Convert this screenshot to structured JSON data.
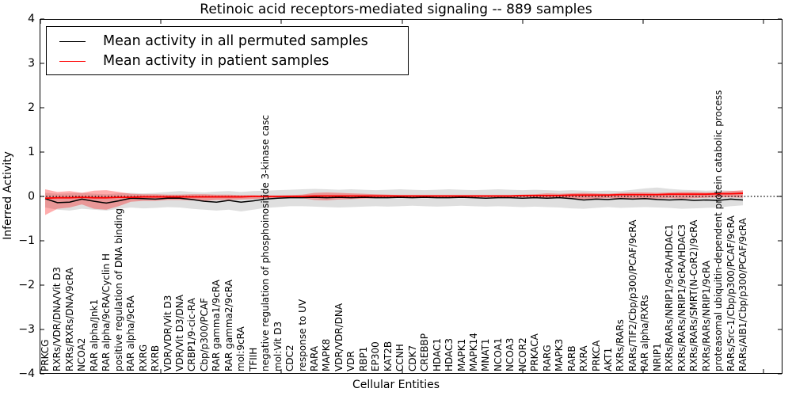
{
  "figure": {
    "title": "Retinoic acid receptors-mediated signaling -- 889 samples",
    "xlabel": "Cellular Entities",
    "ylabel": "Inferred Activity"
  },
  "legend": {
    "entries": [
      {
        "label": "Mean activity in all permuted samples",
        "color": "#000000"
      },
      {
        "label": "Mean activity in patient samples",
        "color": "#ff0000"
      }
    ]
  },
  "chart_data": {
    "type": "line",
    "title": "Retinoic acid receptors-mediated signaling -- 889 samples",
    "xlabel": "Cellular Entities",
    "ylabel": "Inferred Activity",
    "ylim": [
      -4,
      4
    ],
    "ytick_labels": [
      "4",
      "3",
      "2",
      "1",
      "0",
      "−1",
      "−2",
      "−3",
      "−4"
    ],
    "ytick_values": [
      4,
      3,
      2,
      1,
      0,
      -1,
      -2,
      -3,
      -4
    ],
    "grid": false,
    "legend_position": "upper left",
    "zero_reference_line": 0,
    "categories": [
      "PRKCG",
      "RXRs/VDR/DNA/Vit D3",
      "RXRs/RXRs/DNA/9cRA",
      "NCOA2",
      "RAR alpha/Jnk1",
      "RAR alpha/9cRA/Cyclin H",
      "positive regulation of DNA binding",
      "RAR alpha/9cRA",
      "RXRG",
      "RXRB",
      "VDR/VDR/Vit D3",
      "VDR/Vit D3/DNA",
      "CRBP1/9-cic-RA",
      "Cbp/p300/PCAF",
      "RAR gamma1/9cRA",
      "RAR gamma2/9cRA",
      "mol:9cRA",
      "TFIIH",
      "negative regulation of phosphoinositide 3-kinase casc",
      "mol:Vit D3",
      "CDC2",
      "response to UV",
      "RARA",
      "MAPK8",
      "VDR/VDR/DNA",
      "VDR",
      "RBP1",
      "EP300",
      "KAT2B",
      "CCNH",
      "CDK7",
      "CREBBP",
      "HDAC1",
      "HDAC3",
      "MAPK1",
      "MAPK14",
      "MNAT1",
      "NCOA1",
      "NCOA3",
      "NCOR2",
      "PRKACA",
      "RARG",
      "MAPK3",
      "RARB",
      "RXRA",
      "PRKCA",
      "AKT1",
      "RXRs/RARs",
      "RARs/TIF2/Cbp/p300/PCAF/9cRA",
      "RAR alpha/RXRs",
      "NRIP1",
      "RXRs/RARs/NRIP1/9cRA/HDAC1",
      "RXRs/RARs/NRIP1/9cRA/HDAC3",
      "RXRs/RARs/SMRT(N-CoR2)/9cRA",
      "RXRs/RARs/NRIP1/9cRA",
      "proteasomal ubiquitin-dependent protein catabolic process",
      "RARs/Src-1/Cbp/p300/PCAF/9cRA",
      "RARs/AIB1/Cbp/p300/PCAF/9cRA"
    ],
    "series": [
      {
        "name": "Mean activity in all permuted samples",
        "kind": "line",
        "color": "#000000",
        "values": [
          -0.05,
          -0.14,
          -0.13,
          -0.06,
          -0.11,
          -0.15,
          -0.1,
          -0.04,
          -0.05,
          -0.06,
          -0.04,
          -0.04,
          -0.07,
          -0.11,
          -0.13,
          -0.09,
          -0.13,
          -0.1,
          -0.06,
          -0.04,
          -0.03,
          -0.03,
          -0.02,
          -0.03,
          -0.02,
          -0.03,
          -0.02,
          -0.03,
          -0.03,
          -0.02,
          -0.03,
          -0.02,
          -0.03,
          -0.03,
          -0.02,
          -0.03,
          -0.04,
          -0.03,
          -0.03,
          -0.04,
          -0.03,
          -0.04,
          -0.03,
          -0.05,
          -0.08,
          -0.06,
          -0.07,
          -0.05,
          -0.06,
          -0.05,
          -0.07,
          -0.08,
          -0.07,
          -0.09,
          -0.08,
          -0.09,
          -0.06,
          -0.08
        ]
      },
      {
        "name": "Mean activity in patient samples",
        "kind": "line",
        "color": "#ff0000",
        "values": [
          -0.04,
          -0.03,
          -0.03,
          -0.02,
          -0.03,
          -0.03,
          -0.02,
          -0.02,
          -0.01,
          -0.01,
          -0.01,
          -0.01,
          -0.01,
          -0.01,
          -0.01,
          -0.01,
          -0.01,
          0.0,
          0.0,
          0.0,
          0.0,
          0.0,
          0.01,
          0.01,
          0.01,
          0.01,
          0.01,
          0.01,
          0.01,
          0.01,
          0.01,
          0.01,
          0.01,
          0.01,
          0.01,
          0.01,
          0.01,
          0.01,
          0.01,
          0.02,
          0.02,
          0.02,
          0.02,
          0.03,
          0.03,
          0.03,
          0.03,
          0.04,
          0.04,
          0.04,
          0.04,
          0.05,
          0.05,
          0.05,
          0.05,
          0.06,
          0.06,
          0.07
        ]
      },
      {
        "name": "permuted samples std band",
        "kind": "band",
        "color": "rgba(128,128,128,0.25)",
        "upper": [
          0.08,
          0.06,
          0.07,
          0.08,
          0.06,
          0.05,
          0.07,
          0.08,
          0.07,
          0.08,
          0.1,
          0.12,
          0.1,
          0.09,
          0.11,
          0.12,
          0.1,
          0.12,
          0.13,
          0.14,
          0.15,
          0.16,
          0.17,
          0.16,
          0.15,
          0.16,
          0.15,
          0.14,
          0.15,
          0.16,
          0.15,
          0.14,
          0.15,
          0.16,
          0.15,
          0.14,
          0.15,
          0.16,
          0.15,
          0.14,
          0.15,
          0.14,
          0.13,
          0.14,
          0.13,
          0.12,
          0.13,
          0.12,
          0.15,
          0.18,
          0.2,
          0.17,
          0.15,
          0.14,
          0.13,
          0.14,
          0.13,
          0.12
        ],
        "lower": [
          -0.25,
          -0.3,
          -0.32,
          -0.28,
          -0.3,
          -0.32,
          -0.28,
          -0.25,
          -0.27,
          -0.26,
          -0.24,
          -0.25,
          -0.28,
          -0.3,
          -0.32,
          -0.3,
          -0.34,
          -0.3,
          -0.26,
          -0.24,
          -0.22,
          -0.22,
          -0.23,
          -0.24,
          -0.25,
          -0.24,
          -0.23,
          -0.22,
          -0.23,
          -0.22,
          -0.21,
          -0.22,
          -0.23,
          -0.22,
          -0.21,
          -0.22,
          -0.23,
          -0.22,
          -0.23,
          -0.24,
          -0.23,
          -0.24,
          -0.25,
          -0.27,
          -0.28,
          -0.26,
          -0.24,
          -0.26,
          -0.25,
          -0.24,
          -0.25,
          -0.26,
          -0.28,
          -0.27,
          -0.26,
          -0.25,
          -0.22,
          -0.2
        ]
      },
      {
        "name": "patient samples std band",
        "kind": "band",
        "color": "rgba(255,0,0,0.32)",
        "upper": [
          0.16,
          0.1,
          0.12,
          0.08,
          0.13,
          0.14,
          0.1,
          0.06,
          0.05,
          0.05,
          0.04,
          0.04,
          0.05,
          0.05,
          0.04,
          0.04,
          0.03,
          0.03,
          0.02,
          0.02,
          0.03,
          0.04,
          0.08,
          0.09,
          0.08,
          0.07,
          0.06,
          0.05,
          0.04,
          0.03,
          0.03,
          0.03,
          0.03,
          0.03,
          0.03,
          0.03,
          0.03,
          0.03,
          0.03,
          0.04,
          0.05,
          0.07,
          0.06,
          0.07,
          0.08,
          0.07,
          0.06,
          0.08,
          0.09,
          0.09,
          0.08,
          0.09,
          0.1,
          0.1,
          0.09,
          0.1,
          0.12,
          0.14
        ],
        "lower": [
          -0.42,
          -0.28,
          -0.25,
          -0.18,
          -0.28,
          -0.3,
          -0.22,
          -0.12,
          -0.1,
          -0.1,
          -0.08,
          -0.08,
          -0.09,
          -0.1,
          -0.08,
          -0.08,
          -0.07,
          -0.06,
          -0.04,
          -0.04,
          -0.03,
          -0.04,
          -0.08,
          -0.09,
          -0.07,
          -0.06,
          -0.05,
          -0.04,
          -0.03,
          -0.02,
          -0.02,
          -0.02,
          -0.02,
          -0.02,
          -0.02,
          -0.02,
          -0.02,
          -0.02,
          -0.02,
          -0.02,
          -0.02,
          -0.03,
          -0.03,
          -0.05,
          -0.06,
          -0.05,
          -0.04,
          -0.05,
          -0.06,
          -0.07,
          -0.05,
          -0.04,
          -0.05,
          -0.04,
          -0.03,
          -0.02,
          -0.02,
          -0.03
        ]
      }
    ]
  }
}
